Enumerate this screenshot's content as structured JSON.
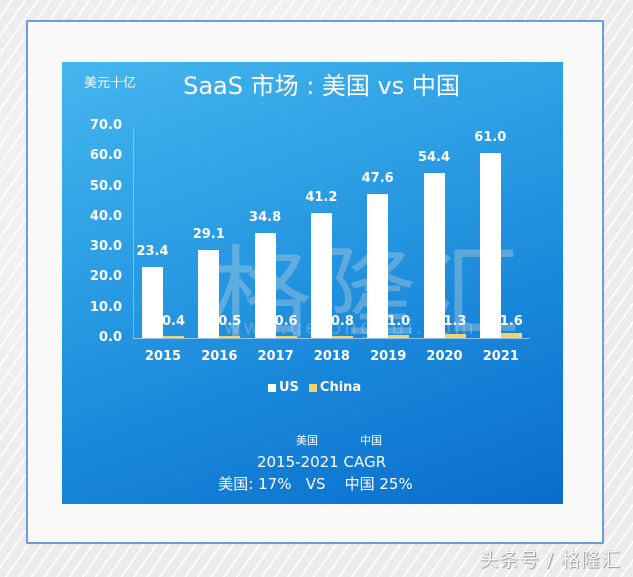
{
  "header": {
    "unit": "美元十亿",
    "title": "SaaS 市场 : 美国 vs 中国"
  },
  "watermark": {
    "text": "格隆汇",
    "url": "www.gelonghui.com"
  },
  "axis": {
    "y_ticks": [
      "70.0",
      "60.0",
      "50.0",
      "40.0",
      "30.0",
      "20.0",
      "10.0",
      "0.0"
    ]
  },
  "legend": {
    "us": "US",
    "china": "China"
  },
  "notes": {
    "us_cn": "美国",
    "china_cn": "中国",
    "cagr_title": "2015-2021 CAGR",
    "cagr_values": "美国: 17%   VS    中国 25%"
  },
  "footer": {
    "credit": "头条号 / 格隆汇"
  },
  "colors": {
    "us": "#ffffff",
    "china": "#f2d56a",
    "panel_top": "#45b6ee",
    "panel_bottom": "#0a6dcc",
    "frame": "#6d9fd6"
  },
  "chart_data": {
    "type": "bar",
    "title": "SaaS 市场 : 美国 vs 中国",
    "ylabel": "美元十亿",
    "xlabel": "",
    "ylim": [
      0,
      70
    ],
    "y_ticks": [
      0,
      10,
      20,
      30,
      40,
      50,
      60,
      70
    ],
    "grid": false,
    "legend_position": "bottom",
    "categories": [
      "2015",
      "2016",
      "2017",
      "2018",
      "2019",
      "2020",
      "2021"
    ],
    "series": [
      {
        "name": "US",
        "values": [
          23.4,
          29.1,
          34.8,
          41.2,
          47.6,
          54.4,
          61.0
        ],
        "labels": [
          "23.4",
          "29.1",
          "34.8",
          "41.2",
          "47.6",
          "54.4",
          "61.0"
        ]
      },
      {
        "name": "China",
        "values": [
          0.4,
          0.5,
          0.6,
          0.8,
          1.0,
          1.3,
          1.6
        ],
        "labels": [
          "0.4",
          "0.5",
          "0.6",
          "0.8",
          "1.0",
          "1.3",
          "1.6"
        ]
      }
    ],
    "annotations": [
      "2015-2021 CAGR",
      "美国: 17%   VS    中国 25%"
    ]
  }
}
